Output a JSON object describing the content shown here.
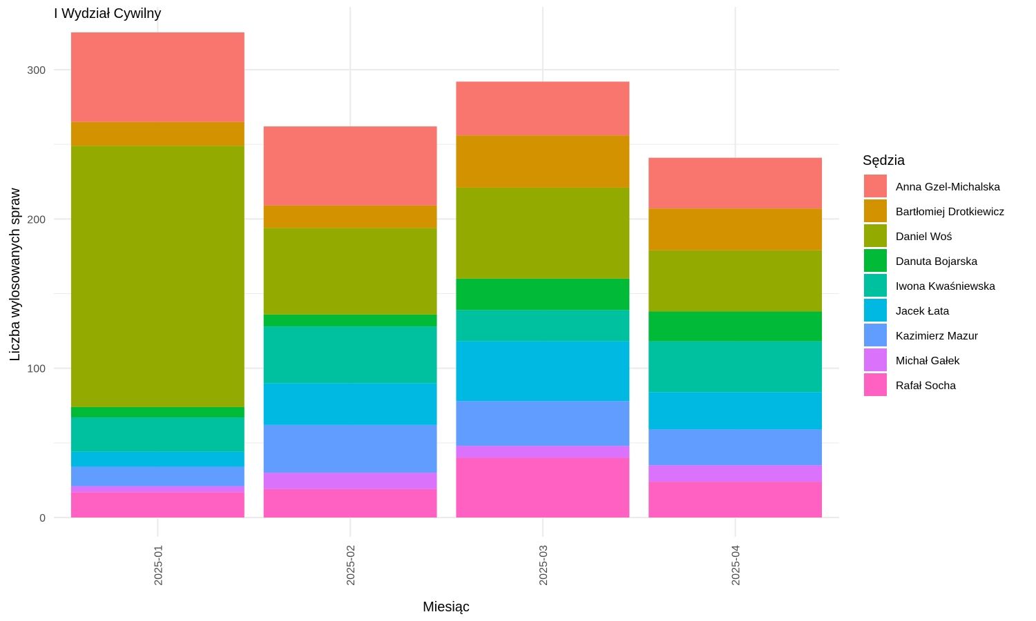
{
  "chart_data": {
    "type": "bar",
    "stacked": true,
    "title": "I Wydział Cywilny",
    "xlabel": "Miesiąc",
    "ylabel": "Liczba wylosowanych spraw",
    "ylim": [
      0,
      325
    ],
    "yticks": [
      0,
      100,
      200,
      300
    ],
    "grid": true,
    "legend_title": "Sędzia",
    "legend_position": "right",
    "categories": [
      "2025-01",
      "2025-02",
      "2025-03",
      "2025-04"
    ],
    "series": [
      {
        "name": "Rafał Socha",
        "color": "#FF61C3",
        "values": [
          17,
          19,
          40,
          24
        ]
      },
      {
        "name": "Michał Gałek",
        "color": "#DB72FB",
        "values": [
          4,
          11,
          8,
          11
        ]
      },
      {
        "name": "Kazimierz Mazur",
        "color": "#619CFF",
        "values": [
          13,
          32,
          30,
          24
        ]
      },
      {
        "name": "Jacek Łata",
        "color": "#00B9E3",
        "values": [
          10,
          28,
          40,
          25
        ]
      },
      {
        "name": "Iwona Kwaśniewska",
        "color": "#00C19F",
        "values": [
          23,
          38,
          21,
          34
        ]
      },
      {
        "name": "Danuta Bojarska",
        "color": "#00BA38",
        "values": [
          7,
          8,
          21,
          20
        ]
      },
      {
        "name": "Daniel Woś",
        "color": "#93AA00",
        "values": [
          175,
          58,
          61,
          41
        ]
      },
      {
        "name": "Bartłomiej Drotkiewicz",
        "color": "#D39200",
        "values": [
          16,
          15,
          35,
          28
        ]
      },
      {
        "name": "Anna Gzel-Michalska",
        "color": "#F8766D",
        "values": [
          60,
          53,
          36,
          34
        ]
      }
    ],
    "legend_order": [
      "Anna Gzel-Michalska",
      "Bartłomiej Drotkiewicz",
      "Daniel Woś",
      "Danuta Bojarska",
      "Iwona Kwaśniewska",
      "Jacek Łata",
      "Kazimierz Mazur",
      "Michał Gałek",
      "Rafał Socha"
    ]
  }
}
